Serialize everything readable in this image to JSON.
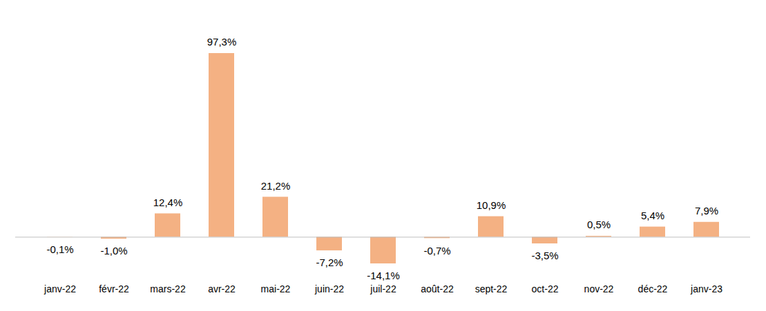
{
  "chart_data": {
    "type": "bar",
    "categories": [
      "janv-22",
      "févr-22",
      "mars-22",
      "avr-22",
      "mai-22",
      "juin-22",
      "juil-22",
      "août-22",
      "sept-22",
      "oct-22",
      "nov-22",
      "déc-22",
      "janv-23"
    ],
    "values": [
      -0.1,
      -1.0,
      12.4,
      97.3,
      21.2,
      -7.2,
      -14.1,
      -0.7,
      10.9,
      -3.5,
      0.5,
      5.4,
      7.9
    ],
    "value_labels": [
      "-0,1%",
      "-1,0%",
      "12,4%",
      "97,3%",
      "21,2%",
      "-7,2%",
      "-14,1%",
      "-0,7%",
      "10,9%",
      "-3,5%",
      "0,5%",
      "5,4%",
      "7,9%"
    ],
    "color": "#f4b183",
    "data_labels": true,
    "tick_labels": "x",
    "grid": false
  }
}
